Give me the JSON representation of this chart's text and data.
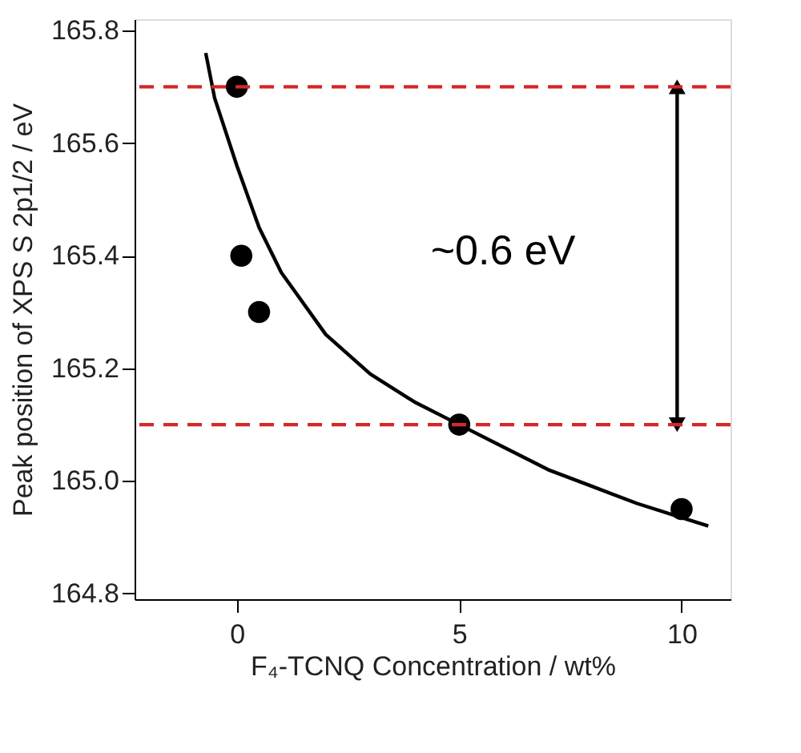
{
  "chart_data": {
    "type": "scatter",
    "xlabel": "F₄-TCNQ Concentration / wt%",
    "ylabel": "Peak position of XPS S 2p1/2 / eV",
    "x": [
      0,
      0.1,
      0.5,
      5,
      10
    ],
    "series": [
      {
        "color": "#000000",
        "values": [
          165.7,
          165.4,
          165.3,
          165.1,
          164.95
        ],
        "marker": "circle"
      },
      {
        "type": "line",
        "color": "#000000",
        "x": [
          -0.7,
          -0.5,
          0,
          0.5,
          1,
          2,
          3,
          4,
          5,
          6,
          7,
          8,
          9,
          10,
          10.6
        ],
        "values": [
          165.76,
          165.68,
          165.56,
          165.45,
          165.37,
          165.26,
          165.19,
          165.14,
          165.1,
          165.06,
          165.02,
          164.99,
          164.96,
          164.935,
          164.92
        ],
        "line_style": "solid"
      },
      {
        "type": "line",
        "color": "#000000",
        "x": [
          9.9,
          9.9
        ],
        "values": [
          165.1,
          165.7
        ],
        "line_style": "solid",
        "marker": "triangle"
      }
    ],
    "xlim": [
      -2.3,
      11.1
    ],
    "ylim": [
      164.79,
      165.82
    ],
    "xticks": [
      0,
      5,
      10
    ],
    "yticks": [
      164.8,
      {
        "value": 165.0,
        "label": "165.0"
      },
      165.2,
      165.4,
      165.6,
      165.8
    ],
    "ref_lines": [
      {
        "axis": "y",
        "value": 165.7,
        "color": "#d62728",
        "line_style": "dashed"
      },
      {
        "axis": "y",
        "value": 165.1,
        "color": "#d62728",
        "line_style": "dashed"
      }
    ],
    "annotations": [
      "~0.6 eV"
    ],
    "grid": false,
    "legend": false
  }
}
